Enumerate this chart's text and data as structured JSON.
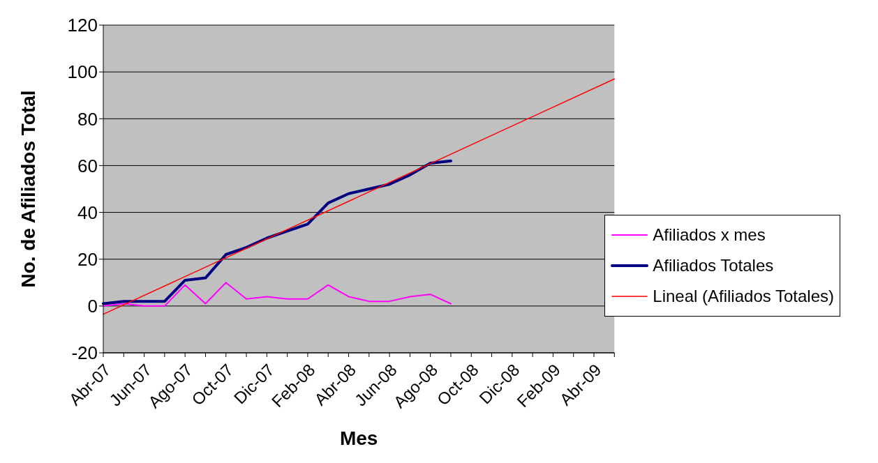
{
  "chart_data": {
    "type": "line",
    "xlabel": "Mes",
    "ylabel": "No. de Afiliados Total",
    "categories": [
      "Abr-07",
      null,
      "Jun-07",
      null,
      "Ago-07",
      null,
      "Oct-07",
      null,
      "Dic-07",
      null,
      "Feb-08",
      null,
      "Abr-08",
      null,
      "Jun-08",
      null,
      "Ago-08",
      null,
      "Oct-08",
      null,
      "Dic-08",
      null,
      "Feb-09",
      null,
      "Abr-09",
      null
    ],
    "series": [
      {
        "name": "Afiliados x mes",
        "color": "#ff00ff",
        "values": [
          0,
          1,
          0,
          0,
          9,
          1,
          10,
          3,
          4,
          3,
          3,
          9,
          4,
          2,
          2,
          4,
          5,
          1,
          null,
          null,
          null,
          null,
          null,
          null,
          null,
          null
        ]
      },
      {
        "name": "Afiliados Totales",
        "color": "#000080",
        "values": [
          1,
          2,
          2,
          2,
          11,
          12,
          22,
          25,
          29,
          32,
          35,
          44,
          48,
          50,
          52,
          56,
          61,
          62,
          null,
          null,
          null,
          null,
          null,
          null,
          null,
          null
        ]
      },
      {
        "name": "Lineal (Afiliados Totales)",
        "color": "#ff0000",
        "values": [
          -3.5,
          null,
          null,
          null,
          null,
          null,
          null,
          null,
          null,
          null,
          null,
          null,
          null,
          null,
          null,
          null,
          null,
          null,
          null,
          null,
          null,
          null,
          null,
          null,
          null,
          97
        ]
      }
    ],
    "ylim": [
      -20,
      120
    ],
    "yticks": [
      -20,
      0,
      20,
      40,
      60,
      80,
      100,
      120
    ],
    "grid": "y",
    "legend": "right",
    "marker": "none"
  }
}
